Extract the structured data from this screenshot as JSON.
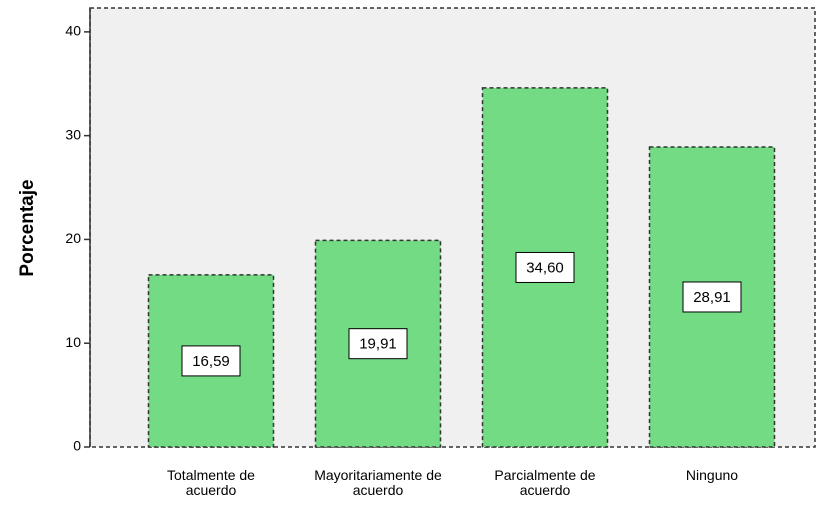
{
  "chart_data": {
    "type": "bar",
    "y_label": "Porcentaje",
    "categories": [
      "Totalmente de acuerdo",
      "Mayoritariamente de acuerdo",
      "Parcialmente de acuerdo",
      "Ninguno"
    ],
    "values": [
      16.59,
      19.91,
      34.6,
      28.91
    ],
    "value_labels": [
      "16,59",
      "19,91",
      "34,60",
      "28,91"
    ],
    "color": "#72db84",
    "ylim": [
      0,
      42.3
    ],
    "yticks": [
      0,
      10,
      20,
      30,
      40
    ],
    "grid": false
  }
}
